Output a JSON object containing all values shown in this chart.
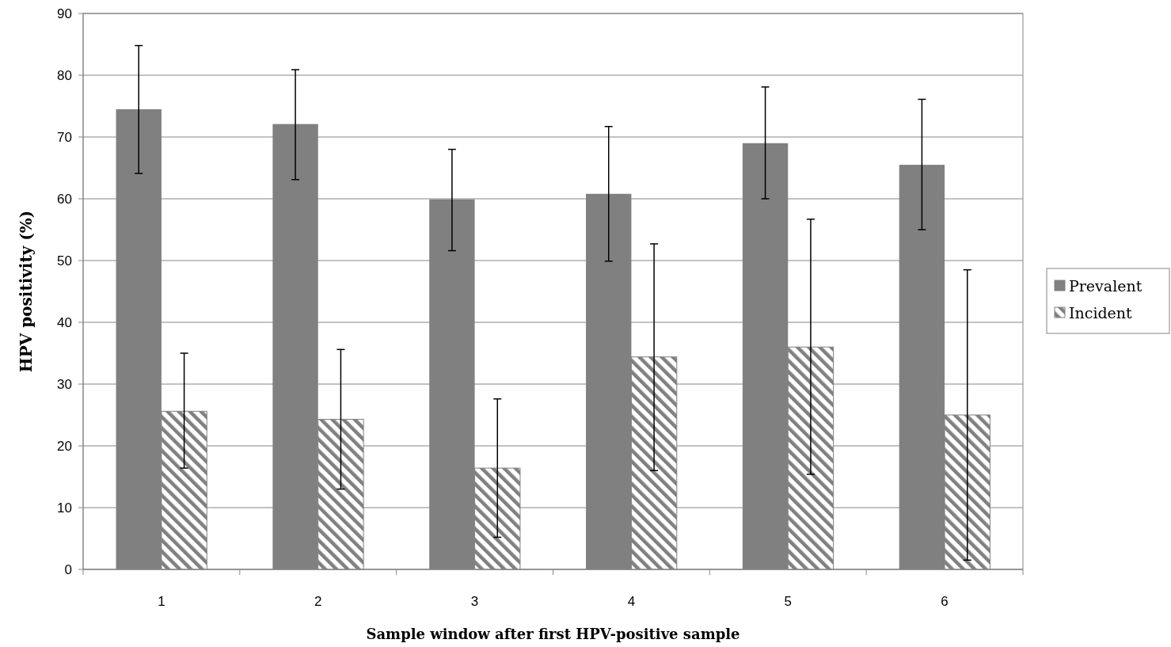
{
  "chart_data": {
    "type": "bar",
    "xlabel": "Sample window after first HPV-positive sample",
    "ylabel": "HPV positivity (%)",
    "categories": [
      "1",
      "2",
      "3",
      "4",
      "5",
      "6"
    ],
    "series": [
      {
        "name": "Prevalent",
        "color": "#808080",
        "values": [
          74.5,
          72.1,
          59.9,
          60.8,
          69.0,
          65.5
        ],
        "errors": [
          [
            64.1,
            84.8
          ],
          [
            63.1,
            80.9
          ],
          [
            51.6,
            68.0
          ],
          [
            49.9,
            71.7
          ],
          [
            60.0,
            78.1
          ],
          [
            55.0,
            76.1
          ]
        ]
      },
      {
        "name": "Incident",
        "color": "#808080",
        "values": [
          25.6,
          24.3,
          16.4,
          34.4,
          36.0,
          25.0
        ],
        "errors": [
          [
            16.4,
            35.0
          ],
          [
            13.0,
            35.6
          ],
          [
            5.2,
            27.6
          ],
          [
            16.0,
            52.7
          ],
          [
            15.4,
            56.7
          ],
          [
            1.5,
            48.5
          ]
        ]
      }
    ],
    "ylim": [
      0,
      90
    ],
    "yticks": [
      0,
      10,
      20,
      30,
      40,
      50,
      60,
      70,
      80,
      90
    ],
    "grid": "y",
    "legend": "right"
  }
}
